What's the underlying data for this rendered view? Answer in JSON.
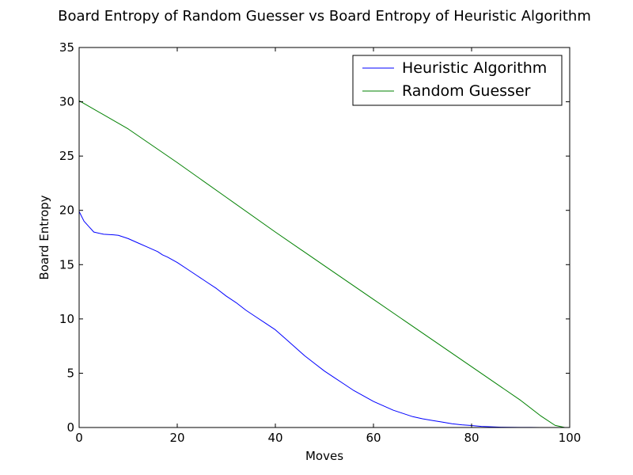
{
  "chart_data": {
    "type": "line",
    "title": "Board Entropy of Random Guesser vs Board Entropy of Heuristic Algorithm",
    "xlabel": "Moves",
    "ylabel": "Board Entropy",
    "xlim": [
      0,
      100
    ],
    "ylim": [
      0,
      35
    ],
    "xticks": [
      0,
      20,
      40,
      60,
      80,
      100
    ],
    "yticks": [
      0,
      5,
      10,
      15,
      20,
      25,
      30,
      35
    ],
    "grid": false,
    "legend_position": "top-right",
    "series": [
      {
        "name": "Heuristic Algorithm",
        "color": "#0000ff",
        "x": [
          0,
          1,
          2,
          3,
          5,
          7,
          8,
          10,
          12,
          14,
          16,
          17,
          18,
          20,
          22,
          24,
          26,
          28,
          30,
          32,
          34,
          36,
          38,
          40,
          42,
          44,
          46,
          48,
          50,
          52,
          54,
          56,
          58,
          60,
          62,
          64,
          66,
          68,
          70,
          72,
          74,
          76,
          78,
          80,
          82,
          84,
          86,
          88,
          90,
          92,
          94,
          96,
          98,
          99
        ],
        "y": [
          19.9,
          19.0,
          18.5,
          18.0,
          17.8,
          17.75,
          17.7,
          17.4,
          17.0,
          16.6,
          16.2,
          15.9,
          15.7,
          15.2,
          14.6,
          14.0,
          13.4,
          12.8,
          12.1,
          11.5,
          10.8,
          10.2,
          9.6,
          9.0,
          8.2,
          7.4,
          6.6,
          5.9,
          5.2,
          4.6,
          4.0,
          3.4,
          2.9,
          2.4,
          2.0,
          1.6,
          1.3,
          1.0,
          0.8,
          0.65,
          0.5,
          0.35,
          0.25,
          0.18,
          0.1,
          0.06,
          0.03,
          0.02,
          0.01,
          0.01,
          0.0,
          0.0,
          0.0,
          0.0
        ]
      },
      {
        "name": "Random Guesser",
        "color": "#008000",
        "x": [
          0,
          10,
          20,
          30,
          40,
          50,
          60,
          70,
          80,
          90,
          94,
          97,
          99
        ],
        "y": [
          30.1,
          27.5,
          24.4,
          21.2,
          18.0,
          14.9,
          11.8,
          8.7,
          5.6,
          2.5,
          1.1,
          0.2,
          0.0
        ]
      }
    ]
  }
}
